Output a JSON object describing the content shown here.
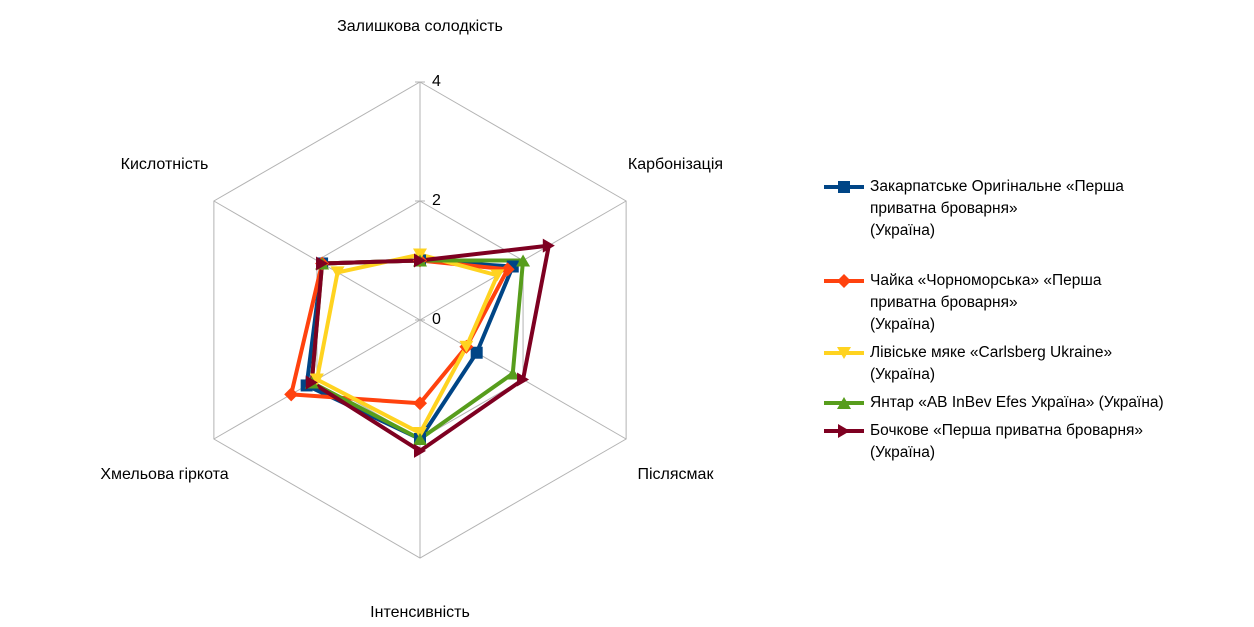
{
  "chart_data": {
    "type": "radar",
    "categories": [
      "Залишкова солодкість",
      "Карбонізація",
      "Післясмак",
      "Інтенсивність",
      "Хмельова гіркота",
      "Кислотність"
    ],
    "ylim": [
      0,
      4
    ],
    "yticks": [
      0,
      2,
      4
    ],
    "grid": true,
    "legend": "right",
    "series": [
      {
        "name": "Закарпатське Оригінальне «Перша\nприватна броварня»\n(Україна)",
        "color": "#004586",
        "marker": "square",
        "values": [
          1.0,
          1.8,
          1.1,
          2.0,
          2.2,
          1.9
        ]
      },
      {
        "name": "Чайка «Чорноморська» «Перша\nприватна броварня»\n(Україна)",
        "color": "#ff420e",
        "marker": "diamond",
        "values": [
          1.0,
          1.7,
          0.9,
          1.4,
          2.5,
          1.9
        ]
      },
      {
        "name": "Лівіське мяке «Carlsberg Ukraine»\n(Україна)",
        "color": "#ffd320",
        "marker": "triangle-down",
        "values": [
          1.1,
          1.5,
          0.9,
          1.9,
          2.0,
          1.6
        ]
      },
      {
        "name": "Янтар «AB InBev Efes Україна» (Україна)",
        "color": "#579d1c",
        "marker": "triangle-up",
        "values": [
          1.0,
          2.0,
          1.8,
          2.0,
          2.1,
          1.9
        ]
      },
      {
        "name": "Бочкове «Перша приватна броварня»\n(Україна)",
        "color": "#7e0021",
        "marker": "triangle-right",
        "values": [
          1.0,
          2.5,
          2.0,
          2.2,
          2.1,
          1.9
        ]
      }
    ]
  }
}
